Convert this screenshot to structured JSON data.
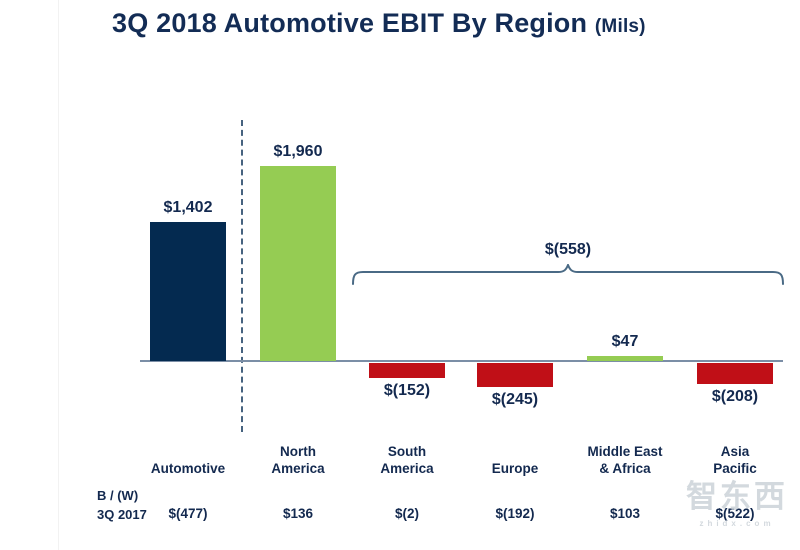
{
  "title": {
    "main": "3Q 2018 Automotive EBIT By Region",
    "suffix": "(Mils)"
  },
  "colors": {
    "navy": "#042a50",
    "green": "#95cc53",
    "red": "#c00f17",
    "text": "#13294f",
    "axis": "#7b8ea6",
    "divider": "#46637f",
    "brace": "#4a6a85"
  },
  "chart_data": {
    "type": "bar",
    "title": "3Q 2018 Automotive EBIT By Region (Mils)",
    "unit": "USD millions",
    "ylim": [
      -300,
      2100
    ],
    "grid": false,
    "columns": [
      {
        "label": "Automotive",
        "value": 1402,
        "value_label": "$1,402",
        "color": "navy",
        "prior_label": "$(477)"
      },
      {
        "label": "North\nAmerica",
        "value": 1960,
        "value_label": "$1,960",
        "color": "green",
        "prior_label": "$136"
      },
      {
        "label": "South\nAmerica",
        "value": -152,
        "value_label": "$(152)",
        "color": "red",
        "prior_label": "$(2)"
      },
      {
        "label": "Europe",
        "value": -245,
        "value_label": "$(245)",
        "color": "red",
        "prior_label": "$(192)"
      },
      {
        "label": "Middle East\n& Africa",
        "value": 47,
        "value_label": "$47",
        "color": "green",
        "prior_label": "$103"
      },
      {
        "label": "Asia\nPacific",
        "value": -208,
        "value_label": "$(208)",
        "color": "red",
        "prior_label": "$(522)"
      }
    ],
    "bracket": {
      "label": "$(558)",
      "total": -558,
      "covers": [
        "South America",
        "Europe",
        "Middle East & Africa",
        "Asia Pacific"
      ]
    }
  },
  "rows": {
    "bw": "B / (W)",
    "period": "3Q 2017"
  },
  "watermark": {
    "cjk": "智东西",
    "latin": "zhidx.com"
  }
}
